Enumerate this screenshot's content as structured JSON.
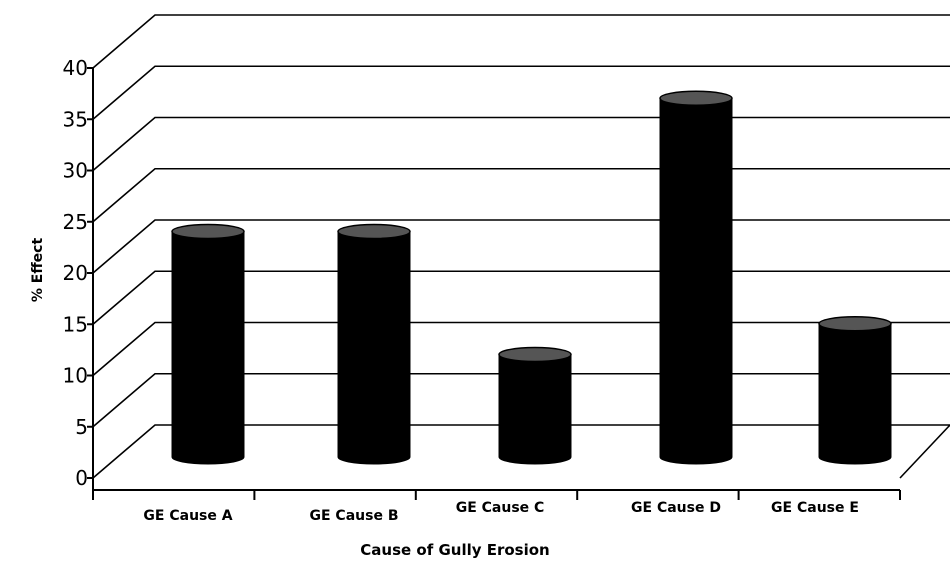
{
  "chart_data": {
    "type": "bar",
    "style": "3d-cylinder",
    "categories": [
      "GE Cause  A",
      "GE Cause  B",
      "GE Cause  C",
      "GE Cause  D",
      "GE Cause  E"
    ],
    "values": [
      22,
      22,
      10,
      35,
      13
    ],
    "title": "",
    "xlabel": "Cause of Gully  Erosion",
    "ylabel": "% Effect",
    "ylim": [
      0,
      40
    ],
    "yticks": [
      0,
      5,
      10,
      15,
      20,
      25,
      30,
      35,
      40
    ],
    "grid": true,
    "legend": "none",
    "colors": {
      "bar_body": "#000000",
      "bar_top": "#555555",
      "grid": "#000000",
      "background": "#ffffff"
    }
  }
}
